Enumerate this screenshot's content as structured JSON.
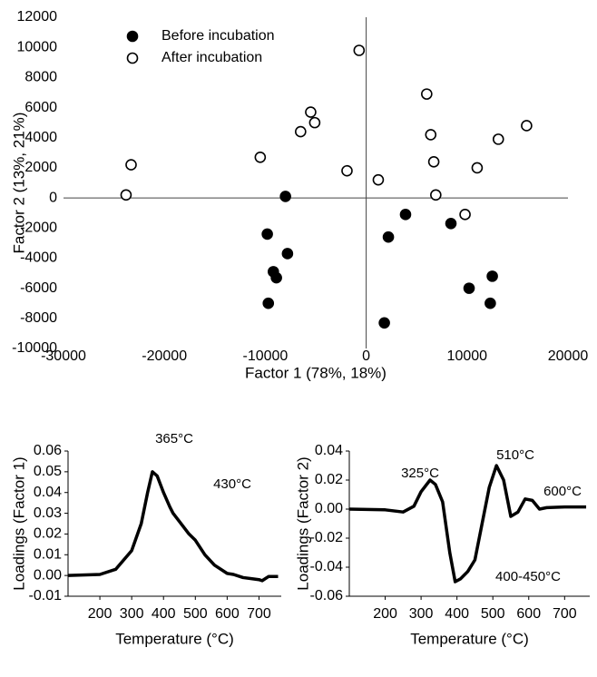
{
  "chart_data": [
    {
      "type": "scatter",
      "x_label": "Factor 1 (78%, 18%)",
      "y_label": "Factor 2 (13%, 21%)",
      "xlim": [
        -30000,
        20000
      ],
      "ylim": [
        -10000,
        12000
      ],
      "xticks": [
        -30000,
        -20000,
        -10000,
        0,
        10000,
        20000
      ],
      "yticks": [
        -10000,
        -8000,
        -6000,
        -4000,
        -2000,
        0,
        2000,
        4000,
        6000,
        8000,
        10000,
        12000
      ],
      "series": [
        {
          "name": "Before incubation",
          "color": "#000000",
          "marker": "filled",
          "x": [
            -8000,
            -9800,
            -7800,
            -9200,
            -8900,
            -9700,
            1800,
            2200,
            3900,
            8400,
            10200,
            12500,
            12300
          ],
          "y": [
            100,
            -2400,
            -3700,
            -4900,
            -5300,
            -7000,
            -8300,
            -2600,
            -1100,
            -1700,
            -6000,
            -5200,
            -7000
          ]
        },
        {
          "name": "After incubation",
          "color": "#000000",
          "marker": "open",
          "x": [
            -23800,
            -23300,
            -10500,
            -6500,
            -5500,
            -5100,
            -1900,
            -700,
            1200,
            6000,
            6400,
            6700,
            6900,
            9800,
            11000,
            13100,
            15900
          ],
          "y": [
            200,
            2200,
            2700,
            4400,
            5700,
            5000,
            1800,
            9800,
            1200,
            6900,
            4200,
            2400,
            200,
            -1100,
            2000,
            3900,
            4800
          ]
        }
      ]
    },
    {
      "type": "line",
      "x_label": "Temperature (°C)",
      "y_label": "Loadings (Factor 1)",
      "xlim": [
        100,
        770
      ],
      "ylim": [
        -0.01,
        0.06
      ],
      "xticks": [
        200,
        300,
        400,
        500,
        600,
        700
      ],
      "yticks": [
        -0.01,
        {
          "value": 0,
          "label": "0.00"
        },
        0.01,
        0.02,
        0.03,
        0.04,
        0.05,
        0.06
      ],
      "color": "#000000",
      "x": [
        100,
        200,
        250,
        300,
        330,
        350,
        365,
        380,
        400,
        420,
        430,
        450,
        480,
        500,
        530,
        560,
        600,
        620,
        650,
        700,
        710,
        730,
        760
      ],
      "values": [
        0,
        0.0005,
        0.003,
        0.012,
        0.025,
        0.04,
        0.05,
        0.048,
        0.04,
        0.033,
        0.03,
        0.026,
        0.02,
        0.017,
        0.01,
        0.005,
        0.001,
        0.0005,
        -0.001,
        -0.002,
        -0.0025,
        -0.0005,
        -0.0005
      ],
      "annotations": [
        "365°C",
        "430°C"
      ]
    },
    {
      "type": "line",
      "x_label": "Temperature (°C)",
      "y_label": "Loadings (Factor 2)",
      "xlim": [
        100,
        770
      ],
      "ylim": [
        -0.06,
        0.04
      ],
      "xticks": [
        200,
        300,
        400,
        500,
        600,
        700
      ],
      "yticks": [
        -0.06,
        -0.04,
        -0.02,
        {
          "value": 0,
          "label": "0.00"
        },
        0.02,
        0.04
      ],
      "color": "#000000",
      "x": [
        100,
        200,
        250,
        280,
        300,
        325,
        340,
        360,
        380,
        395,
        410,
        430,
        450,
        470,
        490,
        510,
        530,
        550,
        570,
        590,
        610,
        630,
        650,
        700,
        760
      ],
      "values": [
        0,
        -0.0005,
        -0.002,
        0.002,
        0.012,
        0.02,
        0.017,
        0.005,
        -0.03,
        -0.05,
        -0.048,
        -0.043,
        -0.035,
        -0.01,
        0.015,
        0.03,
        0.02,
        -0.005,
        -0.002,
        0.007,
        0.006,
        0,
        0.001,
        0.0015,
        0.0015
      ],
      "annotations": [
        "325°C",
        "510°C",
        "600°C",
        "400-450°C"
      ]
    }
  ]
}
